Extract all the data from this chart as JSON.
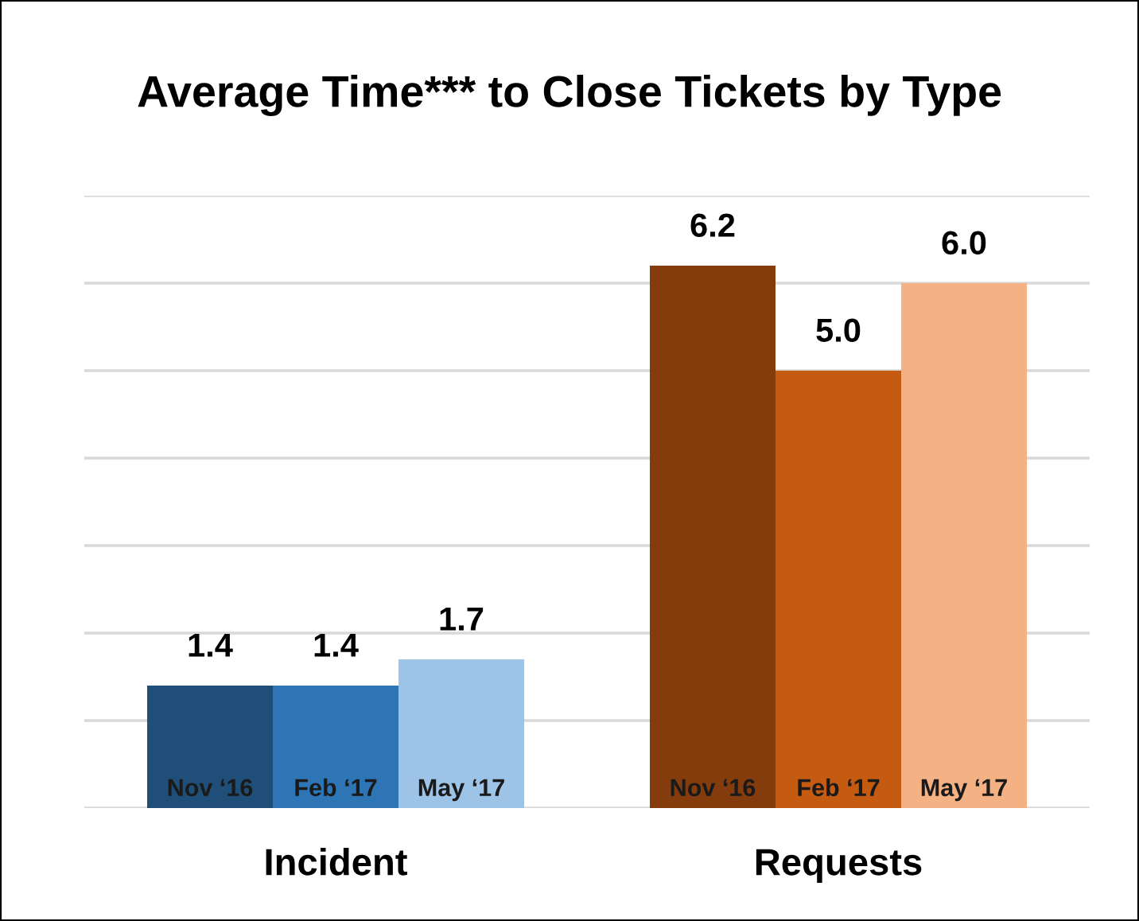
{
  "chart_data": {
    "type": "bar",
    "title": "Average Time*** to Close Tickets by Type",
    "categories": [
      "Incident",
      "Requests"
    ],
    "series": [
      {
        "name": "Nov ‘16",
        "colors": [
          "#1f4e79",
          "#843c0c"
        ],
        "values": [
          1.4,
          6.2
        ],
        "value_labels": [
          "1.4",
          "6.2"
        ]
      },
      {
        "name": "Feb ‘17",
        "colors": [
          "#2e75b6",
          "#c55a11"
        ],
        "values": [
          1.4,
          5.0
        ],
        "value_labels": [
          "1.4",
          "5.0"
        ]
      },
      {
        "name": "May ‘17",
        "colors": [
          "#9dc3e6",
          "#f4b183"
        ],
        "values": [
          1.7,
          6.0
        ],
        "value_labels": [
          "1.7",
          "6.0"
        ]
      }
    ],
    "ylim": [
      0,
      7
    ],
    "yticks": [
      {
        "value": 0,
        "label": null
      },
      {
        "value": 1,
        "label": null
      },
      {
        "value": 2,
        "label": null
      },
      {
        "value": 3,
        "label": null
      },
      {
        "value": 4,
        "label": null
      },
      {
        "value": 5,
        "label": null
      },
      {
        "value": 6,
        "label": null
      },
      {
        "value": 7,
        "label": null
      }
    ],
    "grid": "y",
    "legend": false,
    "tick_labels": "x"
  }
}
